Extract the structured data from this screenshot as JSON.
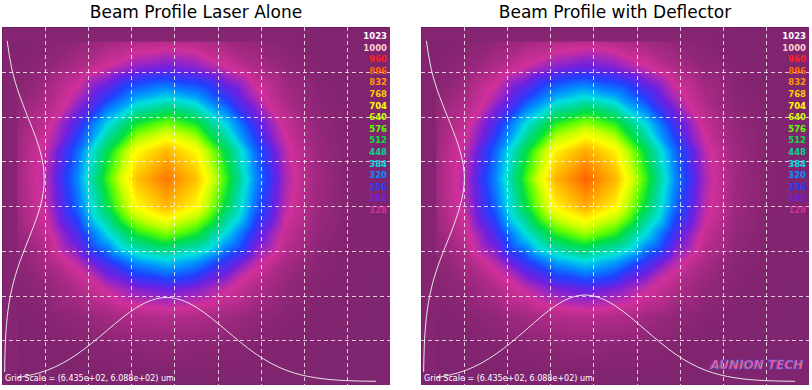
{
  "chart_data": [
    {
      "type": "heatmap",
      "title": "Beam Profile Laser Alone",
      "grid": true,
      "tick_labels": false,
      "annotations": [
        "Grid Scale = (6.435e+02, 6.088e+02) um"
      ],
      "colorbar": {
        "range": [
          0,
          1023
        ],
        "ticks": [
          1023,
          1000,
          960,
          896,
          832,
          768,
          704,
          640,
          576,
          512,
          448,
          384,
          320,
          256,
          192,
          128
        ],
        "colors": [
          "#ffffff",
          "#ffd0d0",
          "#ff2020",
          "#ff6a00",
          "#ff9c00",
          "#ffcc00",
          "#ffff00",
          "#c8ff00",
          "#60ff00",
          "#00e040",
          "#00d890",
          "#00e0e0",
          "#0090ff",
          "#2040ff",
          "#7020e0",
          "#d0309a"
        ]
      },
      "z": [
        [
          43,
          48,
          60,
          77,
          93,
          100,
          93,
          77,
          60,
          48,
          43,
          41,
          40
        ],
        [
          47,
          61,
          91,
          135,
          178,
          196,
          178,
          135,
          91,
          61,
          47,
          42,
          40
        ],
        [
          54,
          84,
          146,
          238,
          328,
          367,
          328,
          238,
          146,
          84,
          54,
          44,
          41
        ],
        [
          64,
          114,
          219,
          375,
          527,
          592,
          527,
          375,
          219,
          114,
          64,
          46,
          41
        ],
        [
          73,
          142,
          286,
          499,
          707,
          796,
          707,
          499,
          286,
          142,
          73,
          48,
          42
        ],
        [
          77,
          153,
          313,
          550,
          781,
          880,
          781,
          550,
          313,
          153,
          77,
          49,
          42
        ],
        [
          73,
          142,
          286,
          499,
          707,
          796,
          707,
          499,
          286,
          142,
          73,
          48,
          42
        ],
        [
          64,
          114,
          219,
          375,
          527,
          592,
          527,
          375,
          219,
          114,
          64,
          46,
          41
        ],
        [
          54,
          84,
          146,
          238,
          328,
          367,
          328,
          238,
          146,
          84,
          54,
          44,
          41
        ],
        [
          47,
          61,
          91,
          135,
          178,
          196,
          178,
          135,
          91,
          61,
          47,
          42,
          40
        ],
        [
          43,
          48,
          60,
          77,
          93,
          100,
          93,
          77,
          60,
          48,
          43,
          41,
          40
        ],
        [
          41,
          43,
          46,
          52,
          57,
          59,
          57,
          52,
          46,
          43,
          41,
          40,
          40
        ],
        [
          40,
          41,
          42,
          43,
          44,
          45,
          44,
          43,
          42,
          41,
          40,
          40,
          40
        ]
      ]
    },
    {
      "type": "heatmap",
      "title": "Beam Profile with Deflector",
      "grid": true,
      "tick_labels": false,
      "annotations": [
        "Grid Scale = (6.435e+02, 6.088e+02) um",
        "AUNION TECH"
      ],
      "colorbar": {
        "range": [
          0,
          1023
        ],
        "ticks": [
          1023,
          1000,
          960,
          896,
          832,
          768,
          704,
          640,
          576,
          512,
          448,
          384,
          320,
          256,
          192,
          128
        ],
        "colors": [
          "#ffffff",
          "#ffd0d0",
          "#ff2020",
          "#ff6a00",
          "#ff9c00",
          "#ffcc00",
          "#ffff00",
          "#c8ff00",
          "#60ff00",
          "#00e040",
          "#00d890",
          "#00e0e0",
          "#0090ff",
          "#2040ff",
          "#7020e0",
          "#d0309a"
        ]
      },
      "z": [
        [
          43,
          48,
          60,
          78,
          95,
          104,
          95,
          78,
          60,
          48,
          43,
          41,
          40
        ],
        [
          47,
          62,
          93,
          138,
          183,
          204,
          183,
          138,
          93,
          62,
          47,
          42,
          40
        ],
        [
          54,
          86,
          150,
          244,
          337,
          380,
          337,
          244,
          150,
          86,
          54,
          44,
          41
        ],
        [
          64,
          116,
          224,
          384,
          541,
          610,
          541,
          384,
          224,
          116,
          64,
          46,
          41
        ],
        [
          73,
          144,
          290,
          506,
          720,
          815,
          720,
          506,
          290,
          144,
          73,
          48,
          42
        ],
        [
          77,
          154,
          316,
          556,
          800,
          905,
          795,
          556,
          316,
          154,
          77,
          49,
          42
        ],
        [
          73,
          144,
          290,
          506,
          718,
          810,
          716,
          506,
          290,
          144,
          73,
          48,
          42
        ],
        [
          64,
          116,
          224,
          384,
          540,
          610,
          540,
          384,
          224,
          116,
          64,
          46,
          41
        ],
        [
          54,
          86,
          150,
          244,
          337,
          380,
          337,
          244,
          150,
          86,
          54,
          44,
          41
        ],
        [
          47,
          62,
          93,
          138,
          183,
          204,
          183,
          138,
          93,
          62,
          47,
          42,
          40
        ],
        [
          43,
          48,
          60,
          78,
          95,
          104,
          95,
          78,
          60,
          48,
          43,
          41,
          40
        ],
        [
          41,
          43,
          46,
          52,
          57,
          60,
          57,
          52,
          46,
          43,
          41,
          40,
          40
        ],
        [
          40,
          41,
          42,
          43,
          44,
          45,
          44,
          43,
          42,
          41,
          40,
          40,
          40
        ]
      ]
    }
  ]
}
